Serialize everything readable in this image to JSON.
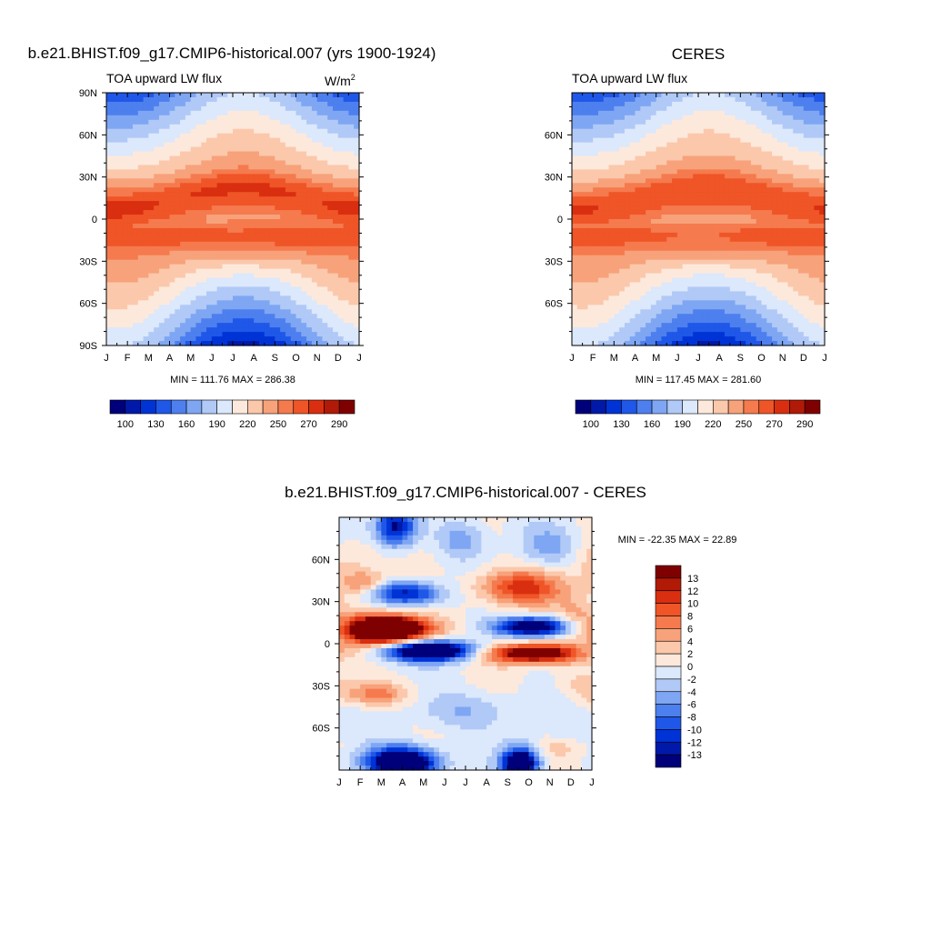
{
  "panels": [
    {
      "id": "model",
      "title": "b.e21.BHIST.f09_g17.CMIP6-historical.007 (yrs 1900-1924)",
      "left_label": "TOA upward LW flux",
      "units_base": "W/m",
      "units_sup": "2",
      "stats": "MIN = 111.76 MAX = 286.38"
    },
    {
      "id": "obs",
      "title": "CERES",
      "left_label": "TOA upward LW flux",
      "units_base": "",
      "units_sup": "",
      "stats": "MIN = 117.45 MAX = 281.60"
    },
    {
      "id": "diff",
      "title": "b.e21.BHIST.f09_g17.CMIP6-historical.007 - CERES",
      "left_label": "",
      "units_base": "",
      "units_sup": "",
      "stats": "MIN = -22.35 MAX =  22.89"
    }
  ],
  "colors": {
    "abs_bins": [
      "#00007a",
      "#0019a8",
      "#0033d6",
      "#1f57e8",
      "#4d7fee",
      "#7ea6f3",
      "#b0c9f7",
      "#dce8fb",
      "#fde9dc",
      "#fbc8ac",
      "#f7a27a",
      "#f57a4e",
      "#ef5527",
      "#d92f10",
      "#b01a07",
      "#7f0000"
    ],
    "diff_bins": [
      "#00007a",
      "#0019a8",
      "#0033d6",
      "#1f57e8",
      "#4d7fee",
      "#7ea6f3",
      "#b0c9f7",
      "#dce8fb",
      "#fde9dc",
      "#fbc8ac",
      "#f7a27a",
      "#f57a4e",
      "#ef5527",
      "#d92f10",
      "#b01a07",
      "#7f0000"
    ]
  },
  "chart_data": [
    {
      "type": "heatmap",
      "panel": "model",
      "title": "b.e21.BHIST.f09_g17.CMIP6-historical.007 (yrs 1900-1924)",
      "xlabel": "",
      "ylabel": "",
      "x_tick_labels": [
        "J",
        "F",
        "M",
        "A",
        "M",
        "J",
        "J",
        "A",
        "S",
        "O",
        "N",
        "D",
        "J"
      ],
      "y_tick_values": [
        90,
        60,
        30,
        0,
        -30,
        -60,
        -90
      ],
      "y_tick_labels": [
        "90N",
        "60N",
        "30N",
        "0",
        "30S",
        "60S",
        "90S"
      ],
      "xlim": [
        0,
        12
      ],
      "ylim": [
        -90,
        90
      ],
      "colorbar_levels": [
        100,
        115,
        130,
        145,
        160,
        175,
        190,
        205,
        220,
        235,
        250,
        260,
        270,
        280,
        290
      ],
      "colorbar_tick_labels": [
        "100",
        "130",
        "160",
        "190",
        "220",
        "250",
        "270",
        "290"
      ],
      "min": 111.76,
      "max": 286.38
    },
    {
      "type": "heatmap",
      "panel": "obs",
      "title": "CERES",
      "xlabel": "",
      "ylabel": "",
      "x_tick_labels": [
        "J",
        "F",
        "M",
        "A",
        "M",
        "J",
        "J",
        "A",
        "S",
        "O",
        "N",
        "D",
        "J"
      ],
      "y_tick_values": [
        60,
        30,
        0,
        -30,
        -60
      ],
      "y_tick_labels": [
        "60N",
        "30N",
        "0",
        "30S",
        "60S"
      ],
      "xlim": [
        0,
        12
      ],
      "ylim": [
        -90,
        90
      ],
      "colorbar_levels": [
        100,
        115,
        130,
        145,
        160,
        175,
        190,
        205,
        220,
        235,
        250,
        260,
        270,
        280,
        290
      ],
      "colorbar_tick_labels": [
        "100",
        "130",
        "160",
        "190",
        "220",
        "250",
        "270",
        "290"
      ],
      "min": 117.45,
      "max": 281.6
    },
    {
      "type": "heatmap",
      "panel": "diff",
      "title": "b.e21.BHIST.f09_g17.CMIP6-historical.007 - CERES",
      "xlabel": "",
      "ylabel": "",
      "x_tick_labels": [
        "J",
        "F",
        "M",
        "A",
        "M",
        "J",
        "J",
        "A",
        "S",
        "O",
        "N",
        "D",
        "J"
      ],
      "y_tick_values": [
        60,
        30,
        0,
        -30,
        -60
      ],
      "y_tick_labels": [
        "60N",
        "30N",
        "0",
        "30S",
        "60S"
      ],
      "xlim": [
        0,
        12
      ],
      "ylim": [
        -90,
        90
      ],
      "colorbar_levels": [
        -13,
        -12,
        -10,
        -8,
        -6,
        -4,
        -2,
        0,
        2,
        4,
        6,
        8,
        10,
        12,
        13
      ],
      "colorbar_tick_labels": [
        "13",
        "12",
        "10",
        "8",
        "6",
        "4",
        "2",
        "0",
        "-2",
        "-4",
        "-6",
        "-8",
        "-10",
        "-12",
        "-13"
      ],
      "min": -22.35,
      "max": 22.89
    }
  ]
}
